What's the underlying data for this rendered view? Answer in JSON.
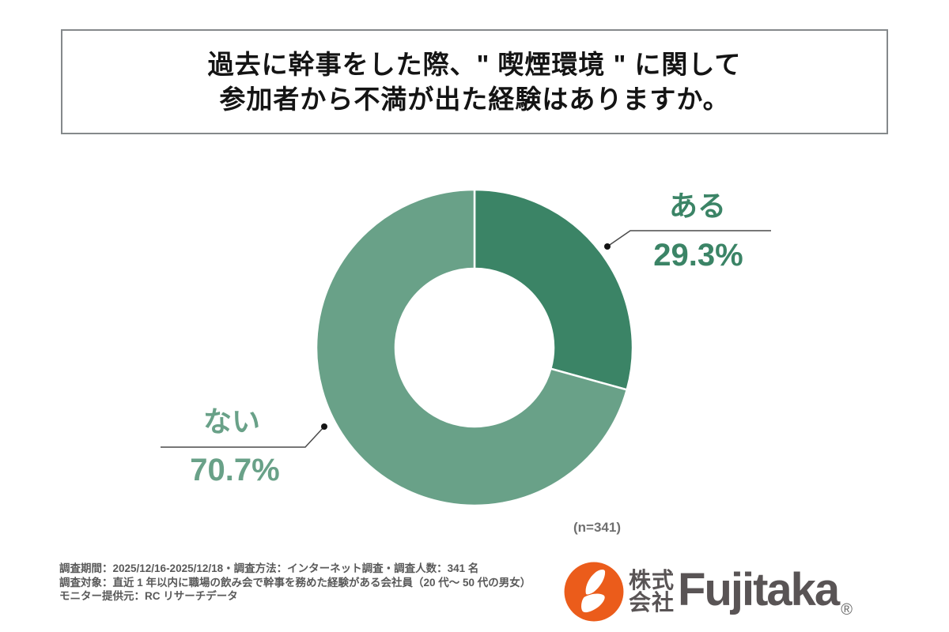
{
  "title": {
    "line1": "過去に幹事をした際、\" 喫煙環境 \" に関して",
    "line2": "参加者から不満が出た経験はありますか。"
  },
  "chart_data": {
    "type": "pie",
    "subtype": "donut",
    "title": "過去に幹事をした際、\"喫煙環境\"に関して参加者から不満が出た経験はありますか。",
    "categories": [
      "ある",
      "ない"
    ],
    "values": [
      29.3,
      70.7
    ],
    "value_labels": [
      "29.3%",
      "70.7%"
    ],
    "colors": [
      "#3B8466",
      "#69A188"
    ],
    "start_angle_deg": 0,
    "direction": "clockwise",
    "inner_radius_ratio": 0.5,
    "legend": "none",
    "sample_label": "(n=341)"
  },
  "footnote": {
    "line1": "調査期間：2025/12/16-2025/12/18・調査方法：インターネット調査・調査人数：341 名",
    "line2": "調査対象：直近 1 年以内に職場の飲み会で幹事を務めた経験がある会社員（20 代～ 50 代の男女）",
    "line3": "モニター提供元：RC リサーチデータ"
  },
  "logo": {
    "prefix_top": "株式",
    "prefix_bottom": "会社",
    "brand": "Fujitaka",
    "registered": "®",
    "mark_color": "#EB5C1B",
    "text_color": "#595455"
  }
}
